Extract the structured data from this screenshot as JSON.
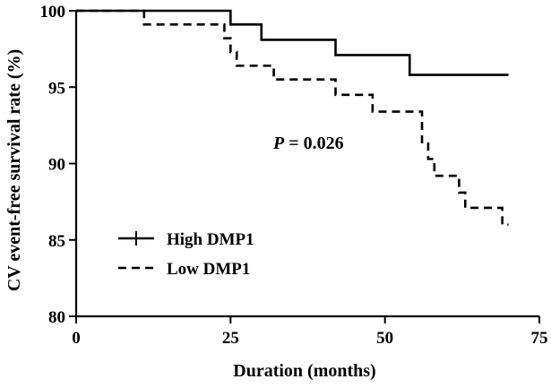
{
  "chart_data": {
    "type": "line",
    "subtype": "kaplan-meier",
    "title": "",
    "xlabel": "Duration (months)",
    "ylabel": "CV event-free survival rate  (%)",
    "xlim": [
      0,
      75
    ],
    "ylim": [
      80,
      100
    ],
    "xticks": [
      0,
      25,
      50,
      75
    ],
    "yticks": [
      80,
      85,
      90,
      95,
      100
    ],
    "grid": false,
    "legend_position": "bottom-left",
    "annotation": {
      "italic_part": "P",
      "rest": " = 0.026"
    },
    "series": [
      {
        "name": "High DMP1",
        "style": "solid",
        "steps": [
          [
            0,
            100
          ],
          [
            25,
            99.1
          ],
          [
            30,
            98.1
          ],
          [
            42,
            97.1
          ],
          [
            54,
            95.8
          ],
          [
            70,
            95.8
          ]
        ]
      },
      {
        "name": "Low DMP1",
        "style": "dashed",
        "steps": [
          [
            0,
            100
          ],
          [
            11,
            99.1
          ],
          [
            24,
            98.2
          ],
          [
            25,
            97.3
          ],
          [
            26,
            96.4
          ],
          [
            32,
            95.5
          ],
          [
            42,
            94.5
          ],
          [
            48,
            93.4
          ],
          [
            56,
            91.3
          ],
          [
            57,
            90.3
          ],
          [
            58,
            89.2
          ],
          [
            62,
            88.1
          ],
          [
            63,
            87.1
          ],
          [
            69,
            86.0
          ],
          [
            70,
            86.0
          ]
        ]
      }
    ]
  },
  "colors": {
    "line": "#000000",
    "background": "#ffffff"
  }
}
